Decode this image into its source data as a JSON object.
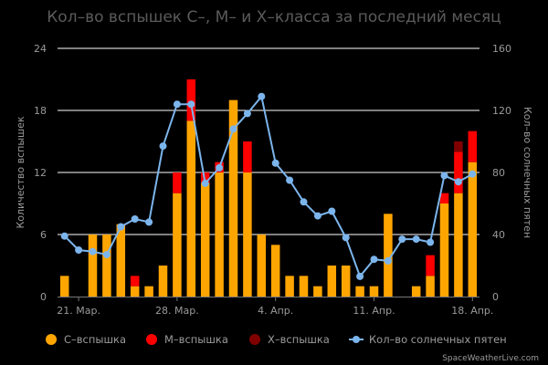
{
  "chart_data": {
    "type": "bar",
    "title": "Кол–во вспышек C–, M– и X–класса за последний месяц",
    "ylabel_left": "Количество вспышек",
    "ylabel_right": "Кол–во солнечных пятен",
    "ylim_left": [
      0,
      24
    ],
    "ylim_right": [
      0,
      160
    ],
    "yticks_left": [
      0,
      6,
      12,
      18,
      24
    ],
    "yticks_right": [
      0,
      40,
      80,
      120,
      160
    ],
    "x_tick_labels": [
      {
        "index": 1,
        "label": "21. Мар."
      },
      {
        "index": 8,
        "label": "28. Мар."
      },
      {
        "index": 15,
        "label": "4. Апр."
      },
      {
        "index": 22,
        "label": "11. Апр."
      },
      {
        "index": 29,
        "label": "18. Апр."
      }
    ],
    "categories": [
      0,
      1,
      2,
      3,
      4,
      5,
      6,
      7,
      8,
      9,
      10,
      11,
      12,
      13,
      14,
      15,
      16,
      17,
      18,
      19,
      20,
      21,
      22,
      23,
      24,
      25,
      26,
      27,
      28,
      29
    ],
    "series": [
      {
        "name": "C–вспышка",
        "color": "#FFA500",
        "values": [
          2,
          0,
          6,
          6,
          7,
          1,
          1,
          3,
          10,
          17,
          11,
          12,
          19,
          12,
          6,
          5,
          2,
          2,
          1,
          3,
          3,
          1,
          1,
          8,
          0,
          1,
          2,
          9,
          10,
          13
        ]
      },
      {
        "name": "M–вспышка",
        "color": "#FF0000",
        "values": [
          0,
          0,
          0,
          0,
          0,
          1,
          0,
          0,
          2,
          4,
          1,
          1,
          0,
          3,
          0,
          0,
          0,
          0,
          0,
          0,
          0,
          0,
          0,
          0,
          0,
          0,
          2,
          1,
          4,
          3
        ]
      },
      {
        "name": "X–вспышка",
        "color": "#800000",
        "values": [
          0,
          0,
          0,
          0,
          0,
          0,
          0,
          0,
          0,
          0,
          0,
          0,
          0,
          0,
          0,
          0,
          0,
          0,
          0,
          0,
          0,
          0,
          0,
          0,
          0,
          0,
          0,
          0,
          1,
          0
        ]
      },
      {
        "name": "Кол–во солнечных пятен",
        "color": "#7CB5EC",
        "type": "line",
        "axis": "right",
        "values": [
          39,
          30,
          29,
          27,
          45,
          50,
          48,
          97,
          124,
          124,
          73,
          83,
          108,
          118,
          129,
          86,
          75,
          61,
          52,
          55,
          38,
          13,
          24,
          23,
          37,
          37,
          35,
          78,
          74,
          79
        ]
      }
    ],
    "legend_position": "bottom"
  },
  "credit": "SpaceWeatherLive.com"
}
